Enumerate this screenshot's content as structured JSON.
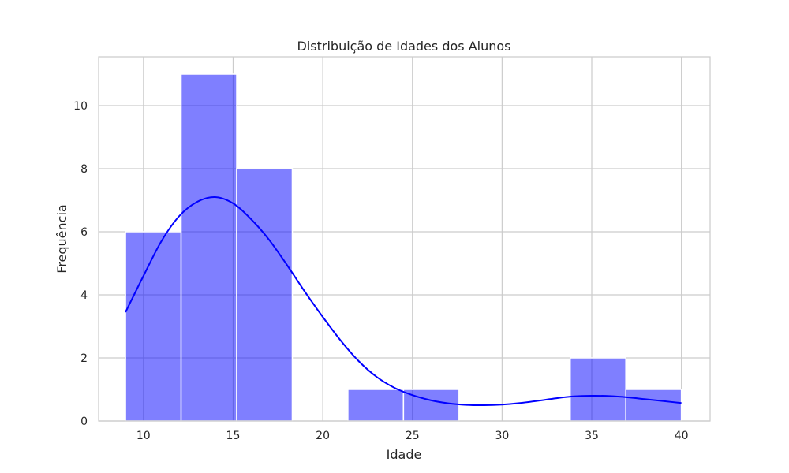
{
  "chart_data": {
    "type": "bar",
    "title": "Distribuição de Idades dos Alunos",
    "xlabel": "Idade",
    "ylabel": "Frequência",
    "xlim": [
      7.5,
      41.6
    ],
    "ylim": [
      0,
      11.55
    ],
    "grid": true,
    "x_ticks": [
      10,
      15,
      20,
      25,
      30,
      35,
      40
    ],
    "y_ticks": [
      0,
      2,
      4,
      6,
      8,
      10
    ],
    "bar_color": "#0000ff",
    "bar_opacity": 0.5,
    "kde_color": "#0000ff",
    "bins": [
      {
        "start": 9.0,
        "end": 12.1,
        "count": 6
      },
      {
        "start": 12.1,
        "end": 15.2,
        "count": 11
      },
      {
        "start": 15.2,
        "end": 18.3,
        "count": 8
      },
      {
        "start": 18.3,
        "end": 21.4,
        "count": 0
      },
      {
        "start": 21.4,
        "end": 24.5,
        "count": 1
      },
      {
        "start": 24.5,
        "end": 27.6,
        "count": 1
      },
      {
        "start": 27.6,
        "end": 30.7,
        "count": 0
      },
      {
        "start": 30.7,
        "end": 33.8,
        "count": 0
      },
      {
        "start": 33.8,
        "end": 36.9,
        "count": 2
      },
      {
        "start": 36.9,
        "end": 40.0,
        "count": 1
      }
    ],
    "kde": {
      "x": [
        9,
        10,
        11,
        12,
        13,
        14,
        15,
        16,
        17,
        18,
        19,
        20,
        21,
        22,
        23,
        24,
        25,
        26,
        27,
        28,
        29,
        30,
        31,
        32,
        33,
        34,
        35,
        36,
        37,
        38,
        39,
        40
      ],
      "y": [
        3.45,
        4.6,
        5.7,
        6.5,
        6.95,
        7.1,
        6.9,
        6.4,
        5.75,
        4.95,
        4.1,
        3.3,
        2.55,
        1.9,
        1.4,
        1.05,
        0.82,
        0.66,
        0.56,
        0.51,
        0.5,
        0.52,
        0.57,
        0.64,
        0.72,
        0.78,
        0.8,
        0.79,
        0.75,
        0.69,
        0.63,
        0.57
      ]
    }
  }
}
